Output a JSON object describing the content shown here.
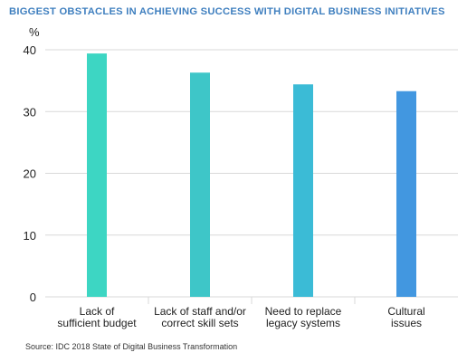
{
  "chart_data": {
    "type": "bar",
    "title": "BIGGEST OBSTACLES IN ACHIEVING SUCCESS WITH DIGITAL BUSINESS INITIATIVES",
    "ylabel": "%",
    "xlabel": "",
    "ylim": [
      0,
      40
    ],
    "yticks": [
      "0",
      "10",
      "20",
      "30",
      "40"
    ],
    "grid": true,
    "categories": [
      [
        "Lack of",
        "sufficient budget"
      ],
      [
        "Lack of staff and/or",
        "correct skill sets"
      ],
      [
        "Need to replace",
        "legacy systems"
      ],
      [
        "Cultural",
        "issues"
      ]
    ],
    "values": [
      39.4,
      36.3,
      34.4,
      33.3
    ],
    "colors": [
      "#3dd6c3",
      "#3ec6c8",
      "#3bbbd6",
      "#4297e0"
    ],
    "source": "Source: IDC 2018 State of Digital Business Transformation"
  },
  "style": {
    "title_color": "#3f7fbf",
    "grid_color": "#d9d9d9"
  }
}
